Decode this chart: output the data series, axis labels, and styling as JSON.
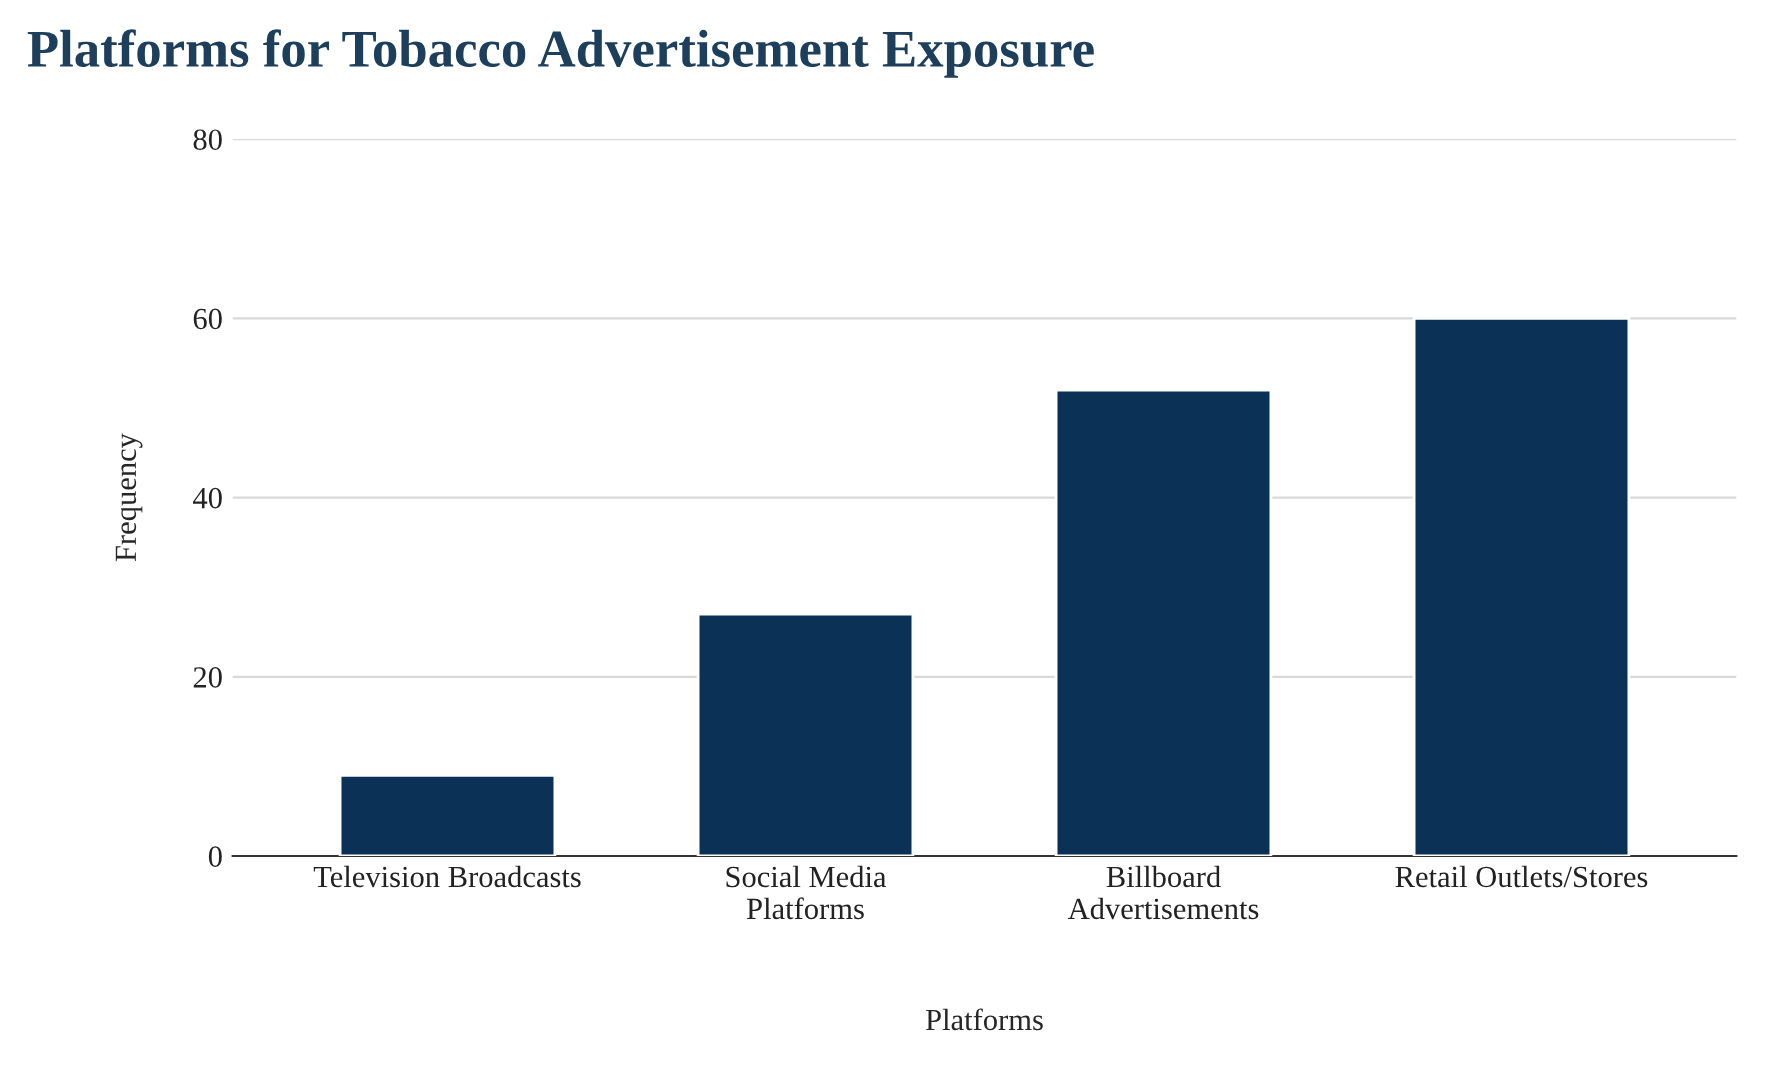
{
  "chart_data": {
    "type": "bar",
    "title": "Platforms for Tobacco Advertisement Exposure",
    "xlabel": "Platforms",
    "ylabel": "Frequency",
    "categories": [
      "Television Broadcasts",
      "Social Media\nPlatforms",
      "Billboard\nAdvertisements",
      "Retail Outlets/Stores"
    ],
    "values": [
      9,
      27,
      52,
      60
    ],
    "color": "#0b3157",
    "ylim": [
      0,
      80
    ],
    "yticks": [
      0,
      20,
      40,
      60,
      80
    ],
    "grid": "y",
    "legend": false
  }
}
